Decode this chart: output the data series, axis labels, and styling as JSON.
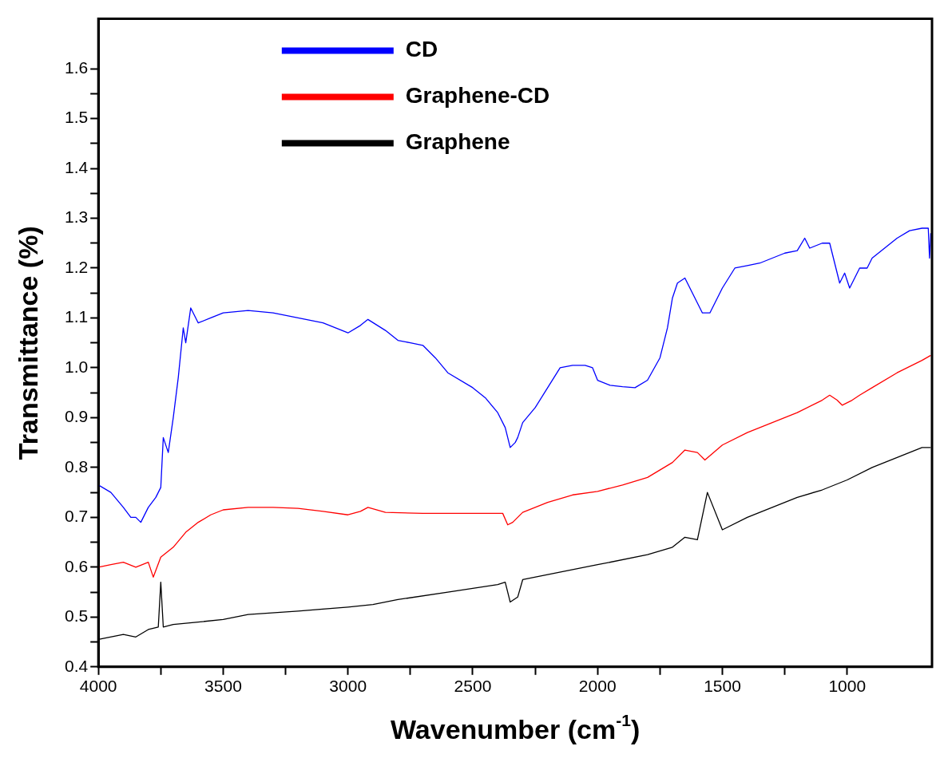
{
  "chart_data": {
    "type": "line",
    "xlabel": "Wavenumber (cm$^{-1}$)",
    "ylabel": "Transmittance (%)",
    "xlim": [
      4000,
      660
    ],
    "xticks": [
      4000,
      3500,
      3000,
      2500,
      2000,
      1500,
      1000
    ],
    "ylim": [
      0.4,
      1.7
    ],
    "yticks": [
      0.4,
      0.5,
      0.6,
      0.7,
      0.8,
      0.9,
      {
        "value": 1.0,
        "label": "1.0"
      },
      1.1,
      1.2,
      1.3,
      1.4,
      1.5,
      1.6
    ],
    "grid": false,
    "legend": "top",
    "marker": "none",
    "line_style": "solid",
    "series": [
      {
        "name": "CD",
        "color": "#0000ff",
        "x": [
          4000,
          3950,
          3900,
          3870,
          3850,
          3830,
          3800,
          3770,
          3750,
          3740,
          3720,
          3700,
          3680,
          3660,
          3650,
          3630,
          3600,
          3550,
          3500,
          3400,
          3300,
          3200,
          3100,
          3000,
          2950,
          2920,
          2850,
          2800,
          2750,
          2700,
          2650,
          2600,
          2500,
          2450,
          2400,
          2370,
          2350,
          2330,
          2320,
          2300,
          2250,
          2200,
          2150,
          2100,
          2050,
          2020,
          2000,
          1950,
          1900,
          1850,
          1800,
          1750,
          1720,
          1700,
          1680,
          1650,
          1620,
          1580,
          1550,
          1500,
          1450,
          1400,
          1350,
          1300,
          1250,
          1200,
          1170,
          1150,
          1100,
          1070,
          1050,
          1030,
          1010,
          990,
          950,
          920,
          900,
          850,
          800,
          750,
          700,
          675,
          670,
          665
        ],
        "values": [
          0.765,
          0.75,
          0.72,
          0.7,
          0.7,
          0.69,
          0.72,
          0.74,
          0.76,
          0.86,
          0.83,
          0.9,
          0.98,
          1.08,
          1.05,
          1.12,
          1.09,
          1.1,
          1.11,
          1.115,
          1.11,
          1.1,
          1.09,
          1.07,
          1.085,
          1.097,
          1.075,
          1.055,
          1.05,
          1.045,
          1.02,
          0.99,
          0.96,
          0.94,
          0.91,
          0.88,
          0.84,
          0.85,
          0.86,
          0.89,
          0.92,
          0.96,
          1.0,
          1.005,
          1.005,
          1.0,
          0.975,
          0.965,
          0.962,
          0.96,
          0.975,
          1.02,
          1.08,
          1.14,
          1.17,
          1.18,
          1.15,
          1.11,
          1.11,
          1.16,
          1.2,
          1.205,
          1.21,
          1.22,
          1.23,
          1.235,
          1.26,
          1.24,
          1.25,
          1.25,
          1.21,
          1.17,
          1.19,
          1.16,
          1.2,
          1.2,
          1.22,
          1.24,
          1.26,
          1.275,
          1.28,
          1.28,
          1.22,
          1.27
        ]
      },
      {
        "name": "Graphene-CD",
        "color": "#ff0000",
        "x": [
          4000,
          3950,
          3900,
          3850,
          3800,
          3780,
          3750,
          3700,
          3650,
          3600,
          3550,
          3500,
          3400,
          3300,
          3200,
          3100,
          3000,
          2950,
          2920,
          2850,
          2700,
          2500,
          2380,
          2360,
          2340,
          2300,
          2200,
          2100,
          2000,
          1900,
          1800,
          1700,
          1650,
          1600,
          1570,
          1500,
          1400,
          1300,
          1200,
          1100,
          1070,
          1040,
          1020,
          980,
          950,
          900,
          800,
          700,
          665
        ],
        "values": [
          0.6,
          0.605,
          0.61,
          0.6,
          0.61,
          0.58,
          0.62,
          0.64,
          0.67,
          0.69,
          0.705,
          0.715,
          0.72,
          0.72,
          0.718,
          0.712,
          0.705,
          0.712,
          0.72,
          0.71,
          0.708,
          0.708,
          0.708,
          0.685,
          0.69,
          0.71,
          0.73,
          0.745,
          0.752,
          0.765,
          0.78,
          0.81,
          0.835,
          0.83,
          0.815,
          0.845,
          0.87,
          0.89,
          0.91,
          0.935,
          0.945,
          0.935,
          0.925,
          0.935,
          0.945,
          0.96,
          0.99,
          1.015,
          1.025
        ]
      },
      {
        "name": "Graphene",
        "color": "#000000",
        "x": [
          4000,
          3900,
          3850,
          3800,
          3760,
          3750,
          3740,
          3700,
          3600,
          3500,
          3400,
          3200,
          3000,
          2900,
          2800,
          2600,
          2400,
          2370,
          2350,
          2320,
          2300,
          2200,
          2000,
          1800,
          1700,
          1650,
          1600,
          1560,
          1500,
          1400,
          1300,
          1200,
          1100,
          1000,
          900,
          800,
          700,
          665
        ],
        "values": [
          0.455,
          0.465,
          0.46,
          0.475,
          0.48,
          0.57,
          0.48,
          0.485,
          0.49,
          0.495,
          0.505,
          0.512,
          0.52,
          0.525,
          0.535,
          0.55,
          0.565,
          0.57,
          0.53,
          0.54,
          0.575,
          0.585,
          0.605,
          0.625,
          0.64,
          0.66,
          0.655,
          0.75,
          0.675,
          0.7,
          0.72,
          0.74,
          0.755,
          0.775,
          0.8,
          0.82,
          0.84,
          0.84
        ]
      }
    ]
  }
}
